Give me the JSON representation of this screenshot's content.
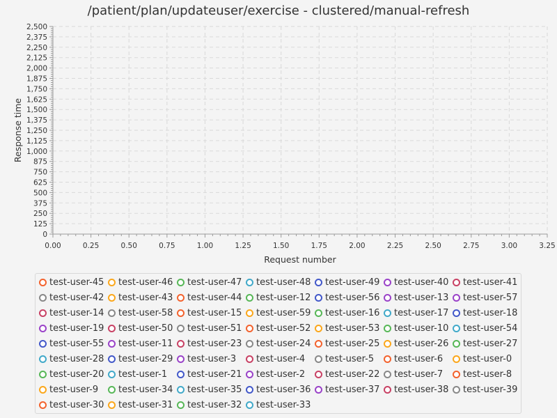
{
  "chart_data": {
    "type": "scatter",
    "title": "/patient/plan/updateuser/exercise - clustered/manual-refresh",
    "xlabel": "Request number",
    "ylabel": "Response time",
    "xlim": [
      0,
      3.25
    ],
    "ylim": [
      0,
      2500
    ],
    "x_ticks": [
      "0.00",
      "0.25",
      "0.50",
      "0.75",
      "1.00",
      "1.25",
      "1.50",
      "1.75",
      "2.00",
      "2.25",
      "2.50",
      "2.75",
      "3.00",
      "3.25"
    ],
    "y_ticks": [
      "0",
      "125",
      "250",
      "375",
      "500",
      "625",
      "750",
      "875",
      "1,000",
      "1,125",
      "1,250",
      "1,375",
      "1,500",
      "1,625",
      "1,750",
      "1,875",
      "2,000",
      "2,125",
      "2,250",
      "2,375",
      "2,500"
    ],
    "grid": true,
    "legend_position": "bottom",
    "series": [
      {
        "name": "test-user-45",
        "color": "#f3622d",
        "points": []
      },
      {
        "name": "test-user-46",
        "color": "#fba71b",
        "points": []
      },
      {
        "name": "test-user-47",
        "color": "#57b757",
        "points": []
      },
      {
        "name": "test-user-48",
        "color": "#41a9c9",
        "points": []
      },
      {
        "name": "test-user-49",
        "color": "#4258c9",
        "points": []
      },
      {
        "name": "test-user-40",
        "color": "#9a42c8",
        "points": []
      },
      {
        "name": "test-user-41",
        "color": "#c84164",
        "points": []
      },
      {
        "name": "test-user-42",
        "color": "#888888",
        "points": []
      },
      {
        "name": "test-user-43",
        "color": "#fba71b",
        "points": []
      },
      {
        "name": "test-user-44",
        "color": "#f3622d",
        "points": []
      },
      {
        "name": "test-user-12",
        "color": "#57b757",
        "points": []
      },
      {
        "name": "test-user-56",
        "color": "#4258c9",
        "points": []
      },
      {
        "name": "test-user-13",
        "color": "#9a42c8",
        "points": []
      },
      {
        "name": "test-user-57",
        "color": "#9a42c8",
        "points": []
      },
      {
        "name": "test-user-14",
        "color": "#c84164",
        "points": []
      },
      {
        "name": "test-user-58",
        "color": "#888888",
        "points": []
      },
      {
        "name": "test-user-15",
        "color": "#f3622d",
        "points": []
      },
      {
        "name": "test-user-59",
        "color": "#fba71b",
        "points": []
      },
      {
        "name": "test-user-16",
        "color": "#57b757",
        "points": []
      },
      {
        "name": "test-user-17",
        "color": "#41a9c9",
        "points": []
      },
      {
        "name": "test-user-18",
        "color": "#4258c9",
        "points": []
      },
      {
        "name": "test-user-19",
        "color": "#9a42c8",
        "points": []
      },
      {
        "name": "test-user-50",
        "color": "#c84164",
        "points": []
      },
      {
        "name": "test-user-51",
        "color": "#888888",
        "points": []
      },
      {
        "name": "test-user-52",
        "color": "#f3622d",
        "points": []
      },
      {
        "name": "test-user-53",
        "color": "#fba71b",
        "points": []
      },
      {
        "name": "test-user-10",
        "color": "#57b757",
        "points": []
      },
      {
        "name": "test-user-54",
        "color": "#41a9c9",
        "points": []
      },
      {
        "name": "test-user-55",
        "color": "#4258c9",
        "points": []
      },
      {
        "name": "test-user-11",
        "color": "#9a42c8",
        "points": []
      },
      {
        "name": "test-user-23",
        "color": "#c84164",
        "points": []
      },
      {
        "name": "test-user-24",
        "color": "#888888",
        "points": []
      },
      {
        "name": "test-user-25",
        "color": "#f3622d",
        "points": []
      },
      {
        "name": "test-user-26",
        "color": "#fba71b",
        "points": []
      },
      {
        "name": "test-user-27",
        "color": "#57b757",
        "points": []
      },
      {
        "name": "test-user-28",
        "color": "#41a9c9",
        "points": []
      },
      {
        "name": "test-user-29",
        "color": "#4258c9",
        "points": []
      },
      {
        "name": "test-user-3",
        "color": "#9a42c8",
        "points": []
      },
      {
        "name": "test-user-4",
        "color": "#c84164",
        "points": []
      },
      {
        "name": "test-user-5",
        "color": "#888888",
        "points": []
      },
      {
        "name": "test-user-6",
        "color": "#f3622d",
        "points": []
      },
      {
        "name": "test-user-0",
        "color": "#fba71b",
        "points": []
      },
      {
        "name": "test-user-20",
        "color": "#57b757",
        "points": []
      },
      {
        "name": "test-user-1",
        "color": "#41a9c9",
        "points": []
      },
      {
        "name": "test-user-21",
        "color": "#4258c9",
        "points": []
      },
      {
        "name": "test-user-2",
        "color": "#9a42c8",
        "points": []
      },
      {
        "name": "test-user-22",
        "color": "#c84164",
        "points": []
      },
      {
        "name": "test-user-7",
        "color": "#888888",
        "points": []
      },
      {
        "name": "test-user-8",
        "color": "#f3622d",
        "points": []
      },
      {
        "name": "test-user-9",
        "color": "#fba71b",
        "points": []
      },
      {
        "name": "test-user-34",
        "color": "#57b757",
        "points": []
      },
      {
        "name": "test-user-35",
        "color": "#41a9c9",
        "points": []
      },
      {
        "name": "test-user-36",
        "color": "#4258c9",
        "points": []
      },
      {
        "name": "test-user-37",
        "color": "#9a42c8",
        "points": []
      },
      {
        "name": "test-user-38",
        "color": "#c84164",
        "points": []
      },
      {
        "name": "test-user-39",
        "color": "#888888",
        "points": []
      },
      {
        "name": "test-user-30",
        "color": "#f3622d",
        "points": []
      },
      {
        "name": "test-user-31",
        "color": "#fba71b",
        "points": []
      },
      {
        "name": "test-user-32",
        "color": "#57b757",
        "points": []
      },
      {
        "name": "test-user-33",
        "color": "#41a9c9",
        "points": []
      }
    ]
  }
}
